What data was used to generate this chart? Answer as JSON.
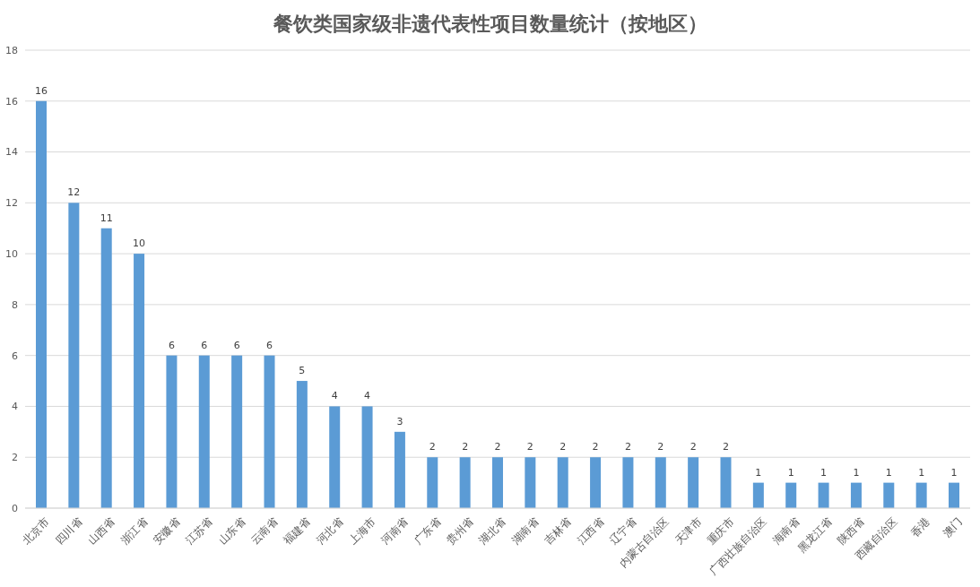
{
  "chart_data": {
    "type": "bar",
    "title": "餐饮类国家级非遗代表性项目数量统计（按地区）",
    "categories": [
      "北京市",
      "四川省",
      "山西省",
      "浙江省",
      "安徽省",
      "江苏省",
      "山东省",
      "云南省",
      "福建省",
      "河北省",
      "上海市",
      "河南省",
      "广东省",
      "贵州省",
      "湖北省",
      "湖南省",
      "吉林省",
      "江西省",
      "辽宁省",
      "内蒙古自治区",
      "天津市",
      "重庆市",
      "广西壮族自治区",
      "海南省",
      "黑龙江省",
      "陕西省",
      "西藏自治区",
      "香港",
      "澳门"
    ],
    "values": [
      16,
      12,
      11,
      10,
      6,
      6,
      6,
      6,
      5,
      4,
      4,
      3,
      2,
      2,
      2,
      2,
      2,
      2,
      2,
      2,
      2,
      2,
      1,
      1,
      1,
      1,
      1,
      1,
      1
    ],
    "color": "#5b9bd5",
    "ylim": [
      0,
      18
    ],
    "yticks": [
      0,
      2,
      4,
      6,
      8,
      10,
      12,
      14,
      16,
      18
    ],
    "grid": "y",
    "data_labels": true
  }
}
